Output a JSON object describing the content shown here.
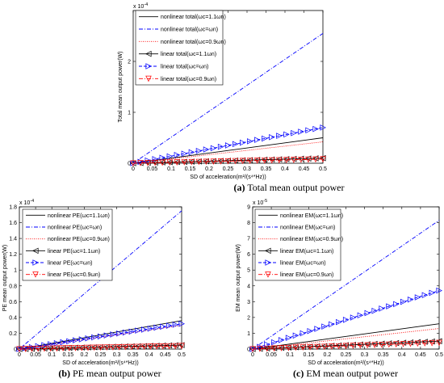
{
  "chart_data": [
    {
      "type": "line",
      "id": "a",
      "caption_label": "(a)",
      "caption_text": "Total mean output power",
      "xlabel": "SD of acceleration(m²/(s⁴*Hz))",
      "ylabel": "Total mean output power(W)",
      "y_exponent": "x 10",
      "y_exponent_power": "-4",
      "xlim": [
        0,
        0.5
      ],
      "ylim": [
        0,
        3
      ],
      "xticks": [
        "0",
        "0.05",
        "0.1",
        "0.15",
        "0.2",
        "0.25",
        "0.3",
        "0.35",
        "0.4",
        "0.45",
        "0.5"
      ],
      "yticks": [
        "0",
        "1",
        "2"
      ],
      "ytick_values": [
        0,
        1,
        2
      ],
      "legend_position": "top-left",
      "series": [
        {
          "name": "nonlinear total(ωc=1.1ωn)",
          "color": "#000000",
          "style": "solid",
          "marker": "none",
          "x": [
            0,
            0.5
          ],
          "y": [
            0,
            0.5
          ]
        },
        {
          "name": "nonlinear total(ωc=ωn)",
          "color": "#0000ff",
          "style": "dashdot",
          "marker": "none",
          "x": [
            0,
            0.5
          ],
          "y": [
            0,
            2.55
          ]
        },
        {
          "name": "nonlinear total(ωc=0.9ωn)",
          "color": "#ff0000",
          "style": "dotted",
          "marker": "none",
          "x": [
            0,
            0.5
          ],
          "y": [
            0,
            0.42
          ]
        },
        {
          "name": "linear total(ωc=1.1ωn)",
          "color": "#000000",
          "style": "solid",
          "marker": "triangle-left",
          "x": [
            0,
            0.5
          ],
          "y": [
            0,
            0.1
          ]
        },
        {
          "name": "linear total(ωc=ωn)",
          "color": "#0000ff",
          "style": "dashed",
          "marker": "triangle-right",
          "x": [
            0,
            0.5
          ],
          "y": [
            0,
            0.7
          ]
        },
        {
          "name": "linear total(ωc=0.9ωn)",
          "color": "#ff0000",
          "style": "dashdot",
          "marker": "triangle-down",
          "x": [
            0,
            0.5
          ],
          "y": [
            0,
            0.08
          ]
        }
      ]
    },
    {
      "type": "line",
      "id": "b",
      "caption_label": "(b)",
      "caption_text": "PE mean output power",
      "xlabel": "SD of acceleration(m²/(s⁴*Hz))",
      "ylabel": "PE mean output power(W)",
      "y_exponent": "x 10",
      "y_exponent_power": "-4",
      "xlim": [
        0,
        0.5
      ],
      "ylim": [
        0,
        1.8
      ],
      "xticks": [
        "0",
        "0.05",
        "0.1",
        "0.15",
        "0.2",
        "0.25",
        "0.3",
        "0.35",
        "0.4",
        "0.45",
        "0.5"
      ],
      "yticks": [
        "0",
        "0.2",
        "0.4",
        "0.6",
        "0.8",
        "1",
        "1.2",
        "1.4",
        "1.6",
        "1.8"
      ],
      "ytick_values": [
        0,
        0.2,
        0.4,
        0.6,
        0.8,
        1,
        1.2,
        1.4,
        1.6,
        1.8
      ],
      "legend_position": "top-left",
      "series": [
        {
          "name": "nonlinear PE(ωc=1.1ωn)",
          "color": "#000000",
          "style": "solid",
          "marker": "none",
          "x": [
            0,
            0.5
          ],
          "y": [
            0,
            0.36
          ]
        },
        {
          "name": "nonlinear PE(ωc=ωn)",
          "color": "#0000ff",
          "style": "dashdot",
          "marker": "none",
          "x": [
            0,
            0.5
          ],
          "y": [
            0,
            1.75
          ]
        },
        {
          "name": "nonlinear PE(ωc=0.9ωn)",
          "color": "#ff0000",
          "style": "dotted",
          "marker": "none",
          "x": [
            0,
            0.5
          ],
          "y": [
            0,
            0.3
          ]
        },
        {
          "name": "linear PE(ωc=1.1ωn)",
          "color": "#000000",
          "style": "solid",
          "marker": "triangle-left",
          "x": [
            0,
            0.5
          ],
          "y": [
            0,
            0.05
          ]
        },
        {
          "name": "linear PE(ωc=ωn)",
          "color": "#0000ff",
          "style": "dashed",
          "marker": "triangle-right",
          "x": [
            0,
            0.5
          ],
          "y": [
            0,
            0.32
          ]
        },
        {
          "name": "linear PE(ωc=0.9ωn)",
          "color": "#ff0000",
          "style": "dashdot",
          "marker": "triangle-down",
          "x": [
            0,
            0.5
          ],
          "y": [
            0,
            0.04
          ]
        }
      ]
    },
    {
      "type": "line",
      "id": "c",
      "caption_label": "(c)",
      "caption_text": "EM mean output power",
      "xlabel": "SD of acceleration(m²/(s⁴*Hz))",
      "ylabel": "EM mean output power(W)",
      "y_exponent": "x 10",
      "y_exponent_power": "-5",
      "xlim": [
        0,
        0.5
      ],
      "ylim": [
        0,
        9
      ],
      "xticks": [
        "0",
        "0.05",
        "0.1",
        "0.15",
        "0.2",
        "0.25",
        "0.3",
        "0.35",
        "0.4",
        "0.45",
        "0.5"
      ],
      "yticks": [
        "0",
        "1",
        "2",
        "3",
        "4",
        "5",
        "6",
        "7",
        "8",
        "9"
      ],
      "ytick_values": [
        0,
        1,
        2,
        3,
        4,
        5,
        6,
        7,
        8,
        9
      ],
      "legend_position": "top-left",
      "series": [
        {
          "name": "nonlinear EM(ωc=1.1ωn)",
          "color": "#000000",
          "style": "solid",
          "marker": "none",
          "x": [
            0,
            0.5
          ],
          "y": [
            0,
            1.6
          ]
        },
        {
          "name": "nonlinear EM(ωc=ωn)",
          "color": "#0000ff",
          "style": "dashdot",
          "marker": "none",
          "x": [
            0,
            0.5
          ],
          "y": [
            0,
            8.15
          ]
        },
        {
          "name": "nonlinear EM(ωc=0.9ωn)",
          "color": "#ff0000",
          "style": "dotted",
          "marker": "none",
          "x": [
            0,
            0.5
          ],
          "y": [
            0,
            1.3
          ]
        },
        {
          "name": "linear EM(ωc=1.1ωn)",
          "color": "#000000",
          "style": "solid",
          "marker": "triangle-left",
          "x": [
            0,
            0.5
          ],
          "y": [
            0,
            0.5
          ]
        },
        {
          "name": "linear EM(ωc=ωn)",
          "color": "#0000ff",
          "style": "dashed",
          "marker": "triangle-right",
          "x": [
            0,
            0.5
          ],
          "y": [
            0,
            3.7
          ]
        },
        {
          "name": "linear EM(ωc=0.9ωn)",
          "color": "#ff0000",
          "style": "dashdot",
          "marker": "triangle-down",
          "x": [
            0,
            0.5
          ],
          "y": [
            0,
            0.4
          ]
        }
      ]
    }
  ]
}
